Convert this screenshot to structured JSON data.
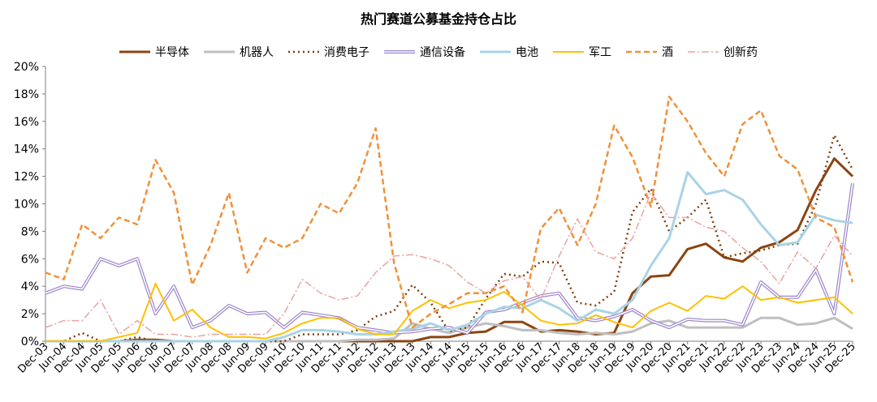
{
  "chart_data": {
    "type": "line",
    "title": "热门赛道公募基金持仓占比",
    "xlabel": "",
    "ylabel": "",
    "ylim": [
      0,
      20
    ],
    "yticks": [
      "0%",
      "2%",
      "4%",
      "6%",
      "8%",
      "10%",
      "12%",
      "14%",
      "16%",
      "18%",
      "20%"
    ],
    "grid": false,
    "legend_position": "top",
    "x": [
      "Dec-03",
      "Jun-04",
      "Dec-04",
      "Jun-05",
      "Dec-05",
      "Jun-06",
      "Dec-06",
      "Jun-07",
      "Dec-07",
      "Jun-08",
      "Dec-08",
      "Jun-09",
      "Dec-09",
      "Jun-10",
      "Dec-10",
      "Jun-11",
      "Dec-11",
      "Jun-12",
      "Dec-12",
      "Jun-13",
      "Dec-13",
      "Jun-14",
      "Dec-14",
      "Jun-15",
      "Dec-15",
      "Jun-16",
      "Dec-16",
      "Jun-17",
      "Dec-17",
      "Jun-18",
      "Dec-18",
      "Jun-19",
      "Dec-19",
      "Jun-20",
      "Dec-20",
      "Jun-21",
      "Dec-21",
      "Jun-22",
      "Dec-22",
      "Jun-23",
      "Dec-23",
      "Jun-24",
      "Dec-24",
      "Jun-25",
      "Dec-25"
    ],
    "series": [
      {
        "name": "半导体",
        "color": "#8B4513",
        "dash": "",
        "width": 3,
        "values": [
          0.0,
          0.0,
          0.0,
          0.0,
          0.0,
          0.1,
          0.1,
          0.0,
          0.0,
          0.0,
          0.0,
          0.0,
          0.0,
          0.0,
          0.0,
          0.0,
          0.0,
          0.0,
          0.0,
          0.0,
          0.0,
          0.3,
          0.3,
          0.6,
          0.7,
          1.4,
          1.4,
          0.7,
          0.8,
          0.7,
          0.5,
          0.6,
          3.5,
          4.7,
          4.8,
          6.7,
          7.1,
          6.1,
          5.8,
          6.8,
          7.2,
          8.1,
          11.0,
          13.3,
          12.0
        ]
      },
      {
        "name": "机器人",
        "color": "#bfbfbf",
        "dash": "",
        "width": 3,
        "values": [
          0.0,
          0.0,
          0.0,
          0.0,
          0.0,
          0.0,
          0.0,
          0.0,
          0.0,
          0.0,
          0.0,
          0.0,
          0.0,
          0.0,
          0.0,
          0.0,
          0.0,
          0.1,
          0.1,
          0.2,
          1.3,
          0.9,
          0.6,
          1.0,
          1.3,
          1.1,
          0.8,
          0.8,
          0.6,
          0.5,
          0.6,
          0.5,
          0.7,
          1.3,
          1.5,
          1.0,
          1.0,
          1.0,
          1.0,
          1.7,
          1.7,
          1.2,
          1.3,
          1.7,
          0.9
        ]
      },
      {
        "name": "消费电子",
        "color": "#7f3f0f",
        "dash": "2 4",
        "width": 2.5,
        "values": [
          0.0,
          0.0,
          0.6,
          0.0,
          0.0,
          0.3,
          0.0,
          0.0,
          0.0,
          0.0,
          0.0,
          0.0,
          0.0,
          0.0,
          0.5,
          0.5,
          0.5,
          0.8,
          1.8,
          2.2,
          4.1,
          2.8,
          0.7,
          1.0,
          3.1,
          4.9,
          4.7,
          5.8,
          5.7,
          2.8,
          2.6,
          3.6,
          9.4,
          11.1,
          8.0,
          9.0,
          10.3,
          6.1,
          6.4,
          6.6,
          7.0,
          7.1,
          10.0,
          15.0,
          12.5
        ]
      },
      {
        "name": "通信设备",
        "color": "#9c84c9",
        "dash": "",
        "width": 1.3,
        "double": true,
        "values": [
          3.5,
          4.0,
          3.8,
          6.0,
          5.5,
          6.0,
          2.0,
          4.0,
          1.0,
          1.5,
          2.6,
          2.0,
          2.1,
          1.0,
          2.1,
          1.9,
          1.7,
          1.0,
          0.8,
          0.6,
          0.7,
          0.9,
          1.0,
          0.6,
          2.1,
          2.3,
          2.8,
          3.3,
          3.5,
          1.7,
          1.5,
          1.8,
          2.3,
          1.5,
          1.0,
          1.6,
          1.5,
          1.5,
          1.2,
          4.3,
          3.2,
          3.2,
          5.2,
          2.0,
          11.5
        ]
      },
      {
        "name": "电池",
        "color": "#a9d3e6",
        "dash": "",
        "width": 3,
        "values": [
          0.0,
          0.0,
          0.0,
          0.0,
          0.0,
          0.0,
          0.0,
          0.0,
          0.0,
          0.0,
          0.0,
          0.0,
          0.0,
          0.3,
          0.8,
          0.8,
          0.7,
          0.5,
          0.5,
          0.7,
          0.9,
          1.3,
          0.8,
          1.2,
          2.0,
          2.5,
          2.4,
          3.0,
          2.4,
          1.5,
          2.3,
          2.0,
          3.0,
          5.5,
          7.5,
          12.3,
          10.7,
          11.0,
          10.3,
          8.5,
          7.0,
          7.2,
          9.2,
          8.8,
          8.6
        ]
      },
      {
        "name": "军工",
        "color": "#ffc000",
        "dash": "",
        "width": 2,
        "values": [
          0.0,
          0.0,
          0.0,
          0.0,
          0.3,
          0.6,
          4.2,
          1.5,
          2.3,
          1.0,
          0.3,
          0.3,
          0.2,
          0.6,
          1.3,
          1.7,
          1.7,
          0.9,
          0.5,
          0.5,
          2.2,
          3.0,
          2.4,
          2.8,
          3.0,
          3.6,
          2.6,
          1.5,
          1.2,
          1.3,
          1.9,
          1.4,
          1.0,
          2.2,
          2.8,
          2.2,
          3.3,
          3.1,
          4.0,
          3.0,
          3.2,
          2.8,
          3.0,
          3.2,
          2.0
        ]
      },
      {
        "name": "酒",
        "color": "#f0913a",
        "dash": "7 4",
        "width": 2.5,
        "values": [
          5.0,
          4.5,
          8.5,
          7.5,
          9.0,
          8.5,
          13.2,
          10.8,
          4.1,
          7.0,
          10.8,
          5.0,
          7.5,
          6.8,
          7.5,
          10.0,
          9.3,
          11.5,
          15.5,
          5.7,
          1.0,
          2.0,
          2.7,
          3.5,
          3.5,
          4.0,
          2.1,
          8.2,
          9.7,
          7.0,
          10.0,
          15.7,
          13.4,
          9.8,
          17.8,
          16.0,
          13.7,
          12.0,
          15.8,
          16.8,
          13.5,
          12.5,
          9.0,
          8.3,
          4.3
        ]
      },
      {
        "name": "创新药",
        "color": "#e9a3a3",
        "dash": "9 3 2 3",
        "width": 1.5,
        "values": [
          1.0,
          1.5,
          1.5,
          3.0,
          0.5,
          1.5,
          0.5,
          0.5,
          0.3,
          0.5,
          0.5,
          0.5,
          0.5,
          2.0,
          4.5,
          3.5,
          3.0,
          3.3,
          5.0,
          6.2,
          6.3,
          6.0,
          5.5,
          4.3,
          3.5,
          4.4,
          4.7,
          3.0,
          6.2,
          8.9,
          6.5,
          6.0,
          7.5,
          10.8,
          9.0,
          9.0,
          8.3,
          8.0,
          6.8,
          5.8,
          4.2,
          6.5,
          5.3,
          7.7,
          6.2
        ]
      }
    ]
  }
}
